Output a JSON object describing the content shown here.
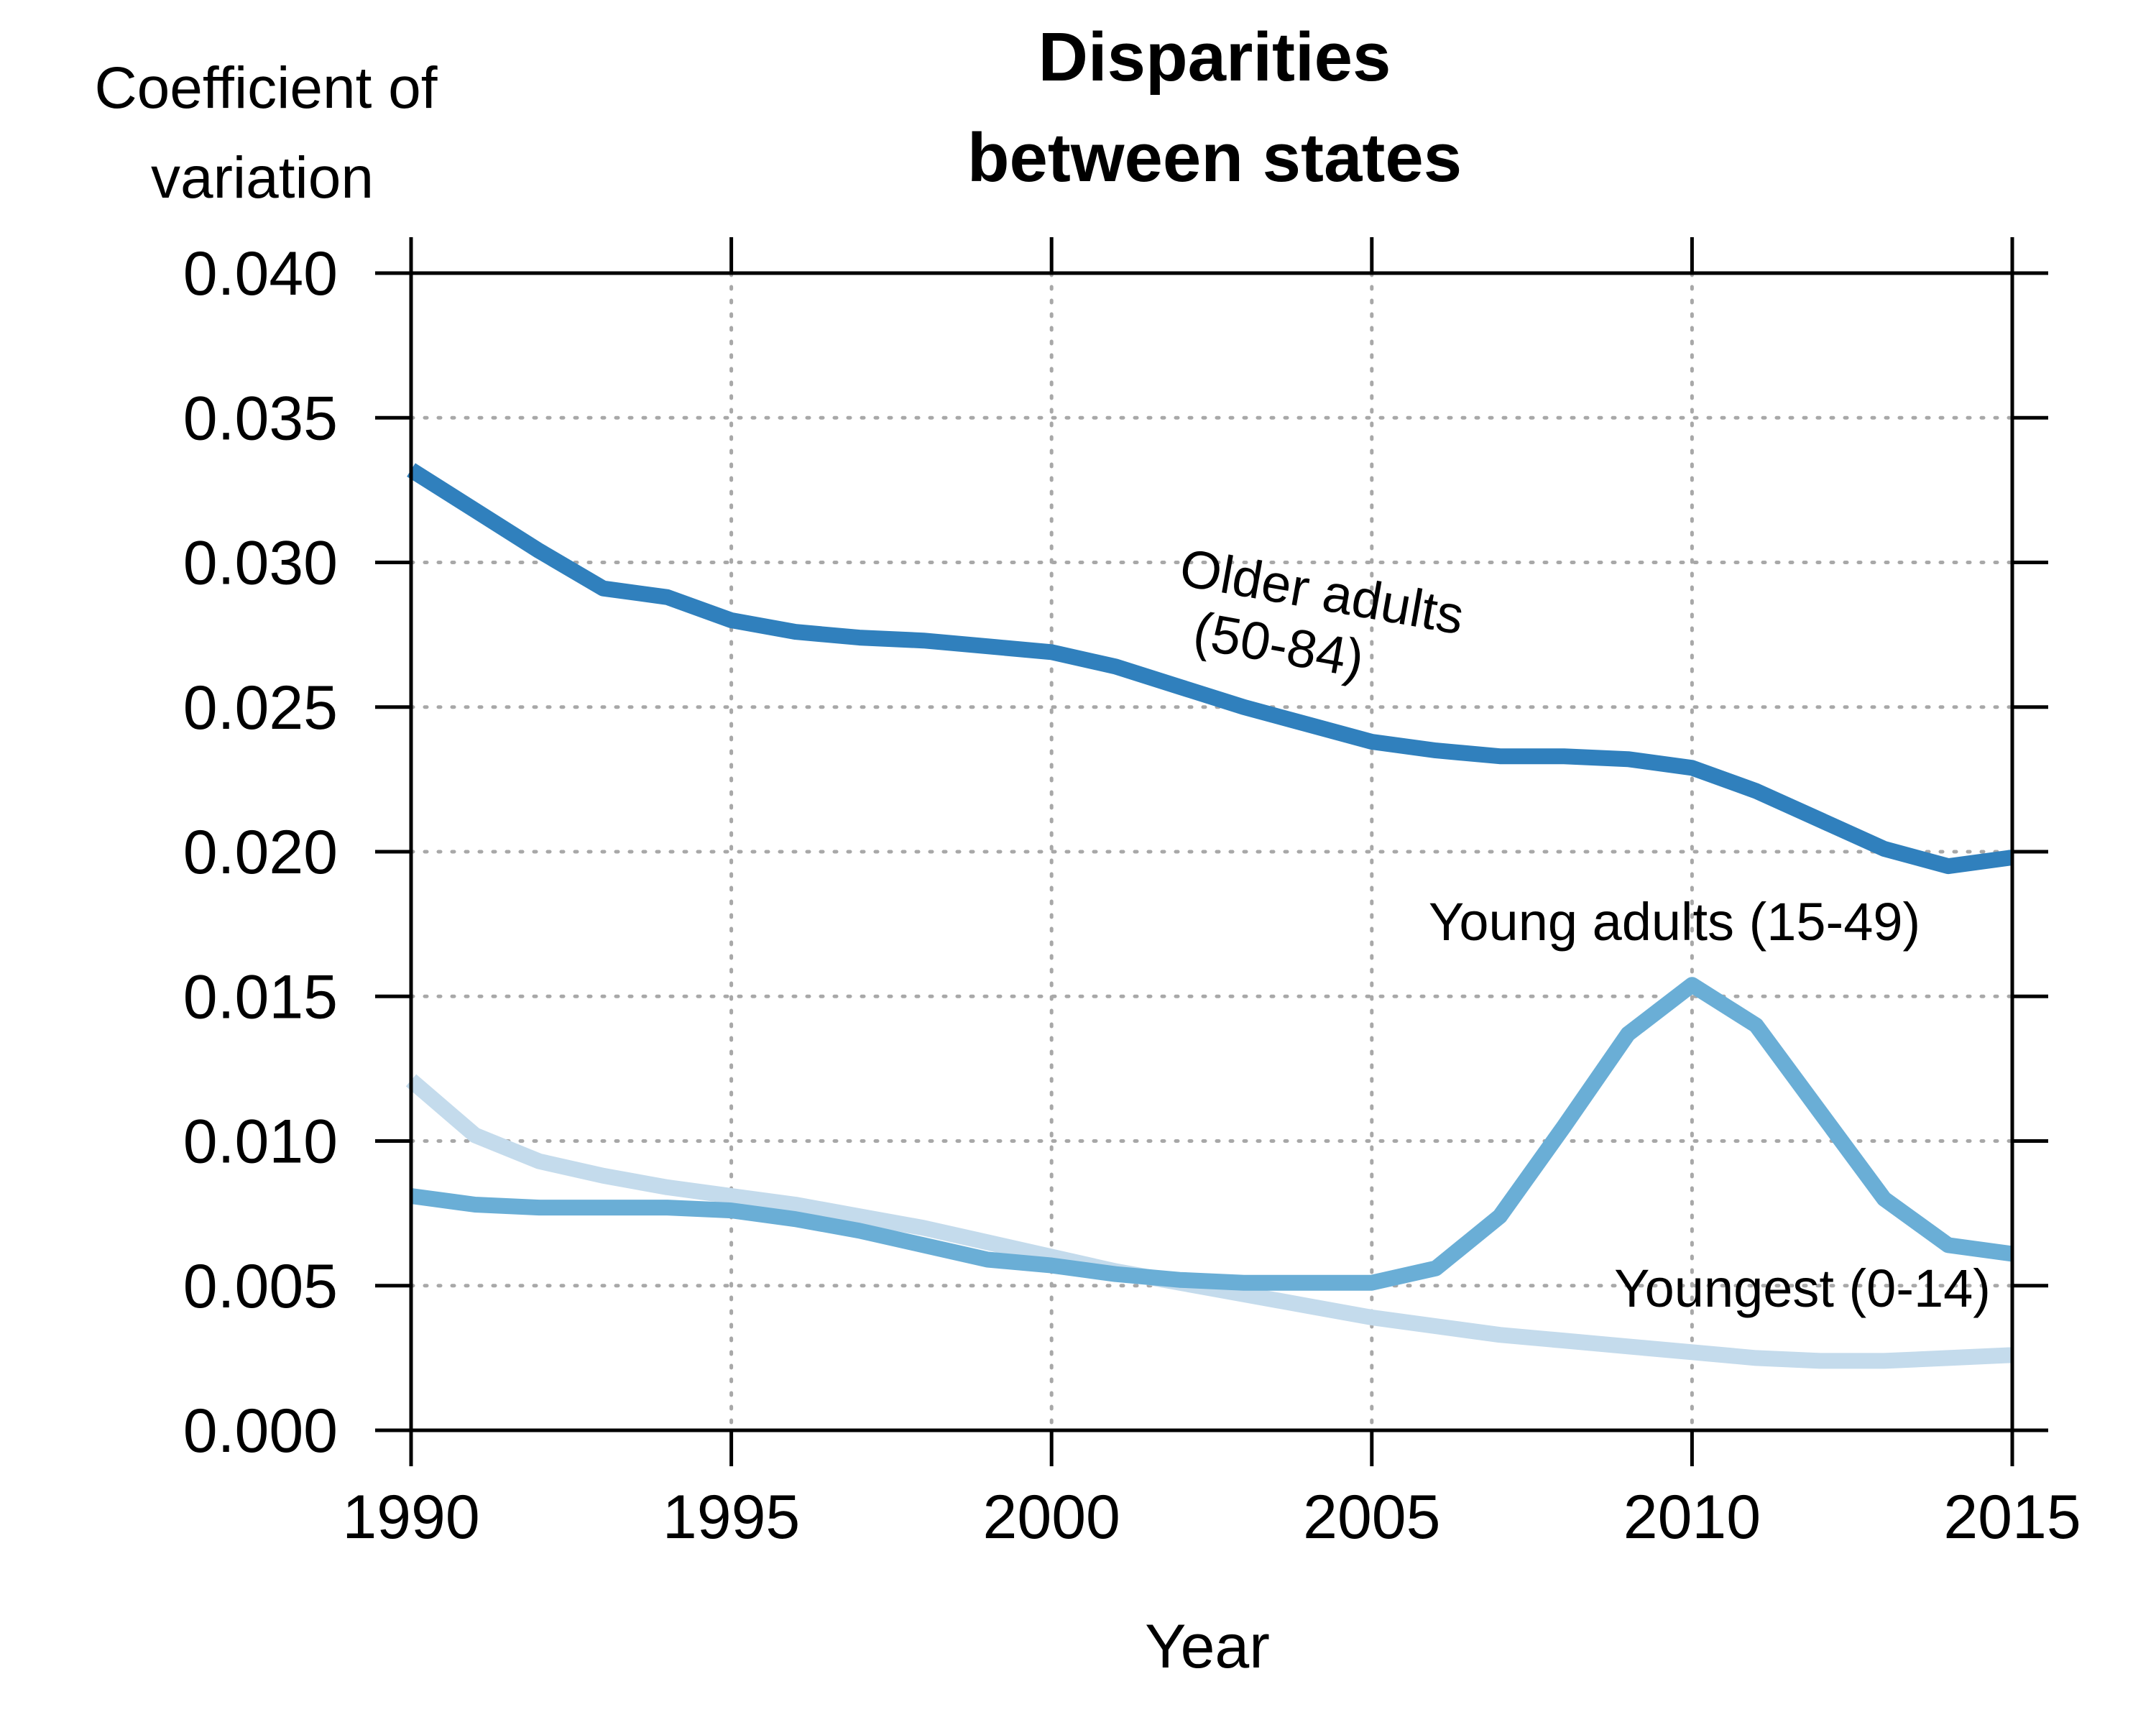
{
  "chart_data": {
    "type": "line",
    "title_lines": [
      "Disparities",
      "between states"
    ],
    "ylabel_lines": [
      "Coefficient of",
      "variation"
    ],
    "xlabel": "Year",
    "xlim": [
      1990,
      2015
    ],
    "ylim": [
      0,
      0.04
    ],
    "x_ticks": [
      1990,
      1995,
      2000,
      2005,
      2010,
      2015
    ],
    "y_ticks": [
      "0.000",
      "0.005",
      "0.010",
      "0.015",
      "0.020",
      "0.025",
      "0.030",
      "0.035",
      "0.040"
    ],
    "grid": true,
    "x": [
      1990,
      1991,
      1992,
      1993,
      1994,
      1995,
      1996,
      1997,
      1998,
      1999,
      2000,
      2001,
      2002,
      2003,
      2004,
      2005,
      2006,
      2007,
      2008,
      2009,
      2010,
      2011,
      2012,
      2013,
      2014,
      2015
    ],
    "series": [
      {
        "key": "youngest",
        "color": "#c4dbec",
        "values": [
          0.0121,
          0.0102,
          0.0093,
          0.0088,
          0.0084,
          0.0081,
          0.0078,
          0.0074,
          0.007,
          0.0065,
          0.006,
          0.0055,
          0.0051,
          0.0047,
          0.0043,
          0.0039,
          0.0036,
          0.0033,
          0.0031,
          0.0029,
          0.0027,
          0.0025,
          0.0024,
          0.0024,
          0.0025,
          0.0026
        ]
      },
      {
        "key": "young_adults",
        "color": "#6aaed6",
        "values": [
          0.0081,
          0.0078,
          0.0077,
          0.0077,
          0.0077,
          0.0076,
          0.0073,
          0.0069,
          0.0064,
          0.0059,
          0.0057,
          0.0054,
          0.0052,
          0.0051,
          0.0051,
          0.0051,
          0.0056,
          0.0074,
          0.0105,
          0.0137,
          0.0154,
          0.014,
          0.011,
          0.008,
          0.0064,
          0.0061
        ]
      },
      {
        "key": "older_adults",
        "color": "#3080bd",
        "values": [
          0.0332,
          0.0318,
          0.0304,
          0.0291,
          0.0288,
          0.028,
          0.0276,
          0.0274,
          0.0273,
          0.0271,
          0.0269,
          0.0264,
          0.0257,
          0.025,
          0.0244,
          0.0238,
          0.0235,
          0.0233,
          0.0233,
          0.0232,
          0.0229,
          0.0221,
          0.0211,
          0.0201,
          0.0195,
          0.0198
        ]
      }
    ],
    "annotations": {
      "older_line1": "Older adults",
      "older_line2": "(50-84)",
      "young": "Young adults (15-49)",
      "youngest": "Youngest (0-14)"
    }
  }
}
